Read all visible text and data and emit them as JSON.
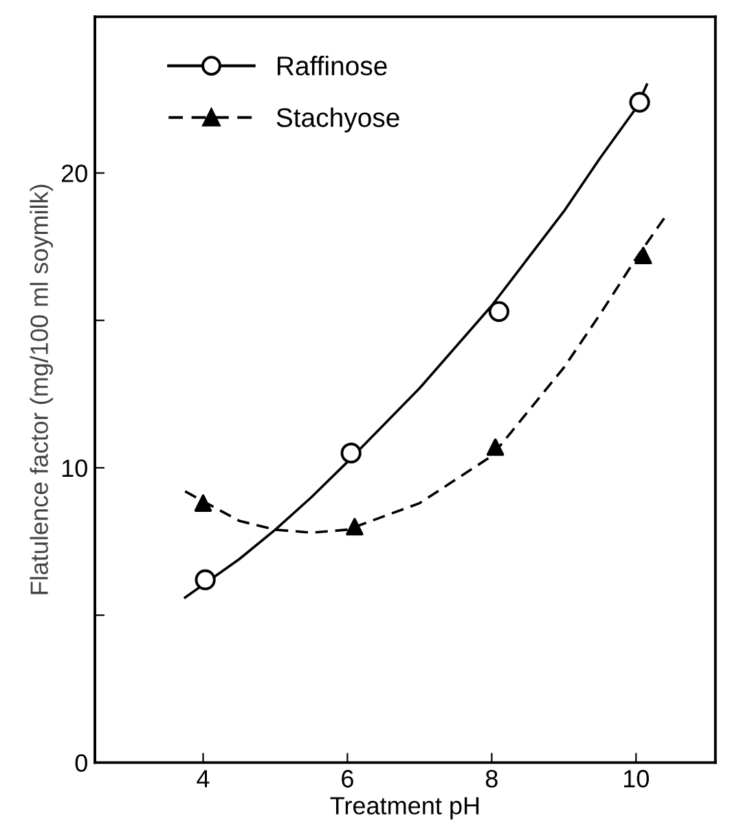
{
  "chart_data": {
    "type": "scatter",
    "xlabel": "Treatment pH",
    "ylabel": "Flatulence factor (mg/100 ml soymilk)",
    "xlim": [
      2.5,
      11.1
    ],
    "ylim": [
      0,
      25.3
    ],
    "xticks": [
      4,
      6,
      8,
      10
    ],
    "yticks": [
      0,
      {
        "value": 5,
        "label": null
      },
      10,
      {
        "value": 15,
        "label": null
      },
      20
    ],
    "grid": false,
    "legend": "top left",
    "series": [
      {
        "name": "Raffinose",
        "marker": "circle",
        "line_style": "solid",
        "color": "#000000",
        "x": [
          4.03,
          6.05,
          8.1,
          10.05
        ],
        "values": [
          6.2,
          10.5,
          15.3,
          22.4
        ]
      },
      {
        "name": "Stachyose",
        "marker": "triangle",
        "line_style": "dashed",
        "color": "#000000",
        "x": [
          4,
          6.1,
          8.05,
          10.1
        ],
        "values": [
          8.8,
          8.0,
          10.7,
          17.2
        ]
      },
      {
        "type": "line",
        "line_style": "solid",
        "color": "#000000",
        "x": [
          3.75,
          4.5,
          5,
          5.5,
          6,
          7,
          8,
          9,
          9.5,
          10,
          10.15
        ],
        "values": [
          5.6,
          6.9,
          7.9,
          9.0,
          10.2,
          12.7,
          15.5,
          18.7,
          20.5,
          22.2,
          23.0
        ]
      },
      {
        "type": "line",
        "line_style": "dashed",
        "color": "#000000",
        "x": [
          3.75,
          4.5,
          5,
          5.5,
          6,
          7,
          8,
          9,
          9.5,
          10,
          10.4
        ],
        "values": [
          9.2,
          8.2,
          7.9,
          7.8,
          7.9,
          8.8,
          10.4,
          13.4,
          15.2,
          17.1,
          18.5
        ]
      }
    ]
  }
}
